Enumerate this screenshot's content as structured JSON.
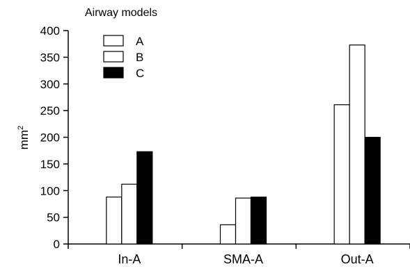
{
  "chart_data": {
    "type": "bar",
    "legend_title": "Airway models",
    "legend_placement": "top-left",
    "ylabel": "mm",
    "ylabel_superscript": "2",
    "xlabel": "",
    "categories": [
      "In-A",
      "SMA-A",
      "Out-A"
    ],
    "ylim": [
      0,
      400
    ],
    "yticks": [
      0,
      50,
      100,
      150,
      200,
      250,
      300,
      350,
      400
    ],
    "grid": false,
    "series": [
      {
        "name": "A",
        "fill": "#ffffff",
        "values": [
          88,
          36,
          261
        ]
      },
      {
        "name": "B",
        "fill": "#ffffff",
        "values": [
          112,
          86,
          373
        ]
      },
      {
        "name": "C",
        "fill": "#000000",
        "values": [
          173,
          88,
          200
        ]
      }
    ]
  }
}
